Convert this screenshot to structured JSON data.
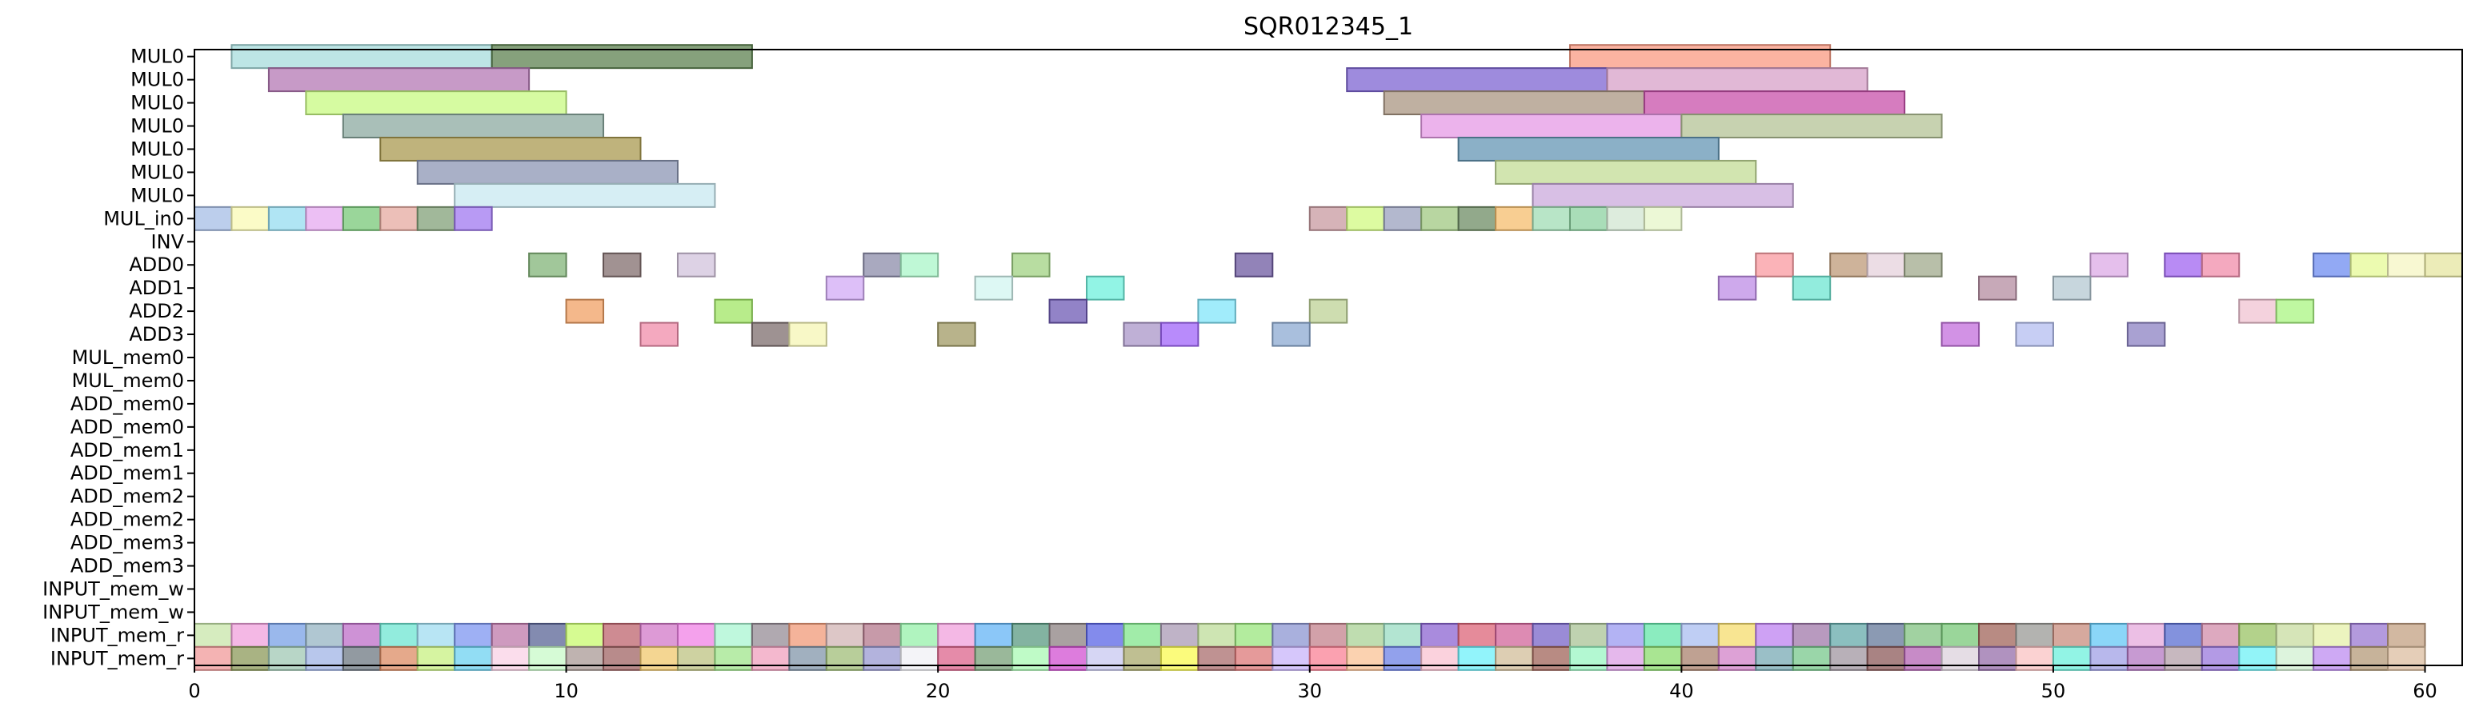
{
  "chart_data": {
    "type": "gantt",
    "title": "SQR012345_1",
    "xlim": [
      0,
      61
    ],
    "x_ticks": [
      "0",
      "10",
      "20",
      "30",
      "40",
      "50",
      "60"
    ],
    "x_tick_values": [
      0,
      10,
      20,
      30,
      40,
      50,
      60
    ],
    "rows": [
      "MUL0",
      "MUL0",
      "MUL0",
      "MUL0",
      "MUL0",
      "MUL0",
      "MUL0",
      "MUL_in0",
      "INV",
      "ADD0",
      "ADD1",
      "ADD2",
      "ADD3",
      "MUL_mem0",
      "MUL_mem0",
      "ADD_mem0",
      "ADD_mem0",
      "ADD_mem1",
      "ADD_mem1",
      "ADD_mem2",
      "ADD_mem2",
      "ADD_mem3",
      "ADD_mem3",
      "INPUT_mem_w",
      "INPUT_mem_w",
      "INPUT_mem_r",
      "INPUT_mem_r"
    ],
    "bars": [
      {
        "row": 0,
        "start": 1,
        "end": 8,
        "color": "#a7dcdc"
      },
      {
        "row": 0,
        "start": 8,
        "end": 15,
        "color": "#5d8250"
      },
      {
        "row": 0,
        "start": 37,
        "end": 44,
        "color": "#fa9a82"
      },
      {
        "row": 1,
        "start": 2,
        "end": 9,
        "color": "#b478b4"
      },
      {
        "row": 1,
        "start": 31,
        "end": 38,
        "color": "#7d64d2"
      },
      {
        "row": 1,
        "start": 38,
        "end": 45,
        "color": "#d7a0c8"
      },
      {
        "row": 2,
        "start": 3,
        "end": 10,
        "color": "#c8fa82"
      },
      {
        "row": 2,
        "start": 32,
        "end": 39,
        "color": "#aa9682"
      },
      {
        "row": 2,
        "start": 39,
        "end": 46,
        "color": "#c850aa"
      },
      {
        "row": 3,
        "start": 4,
        "end": 11,
        "color": "#8caaa0"
      },
      {
        "row": 3,
        "start": 33,
        "end": 40,
        "color": "#e69ae6"
      },
      {
        "row": 3,
        "start": 40,
        "end": 47,
        "color": "#b4c396"
      },
      {
        "row": 4,
        "start": 5,
        "end": 12,
        "color": "#aa9a50"
      },
      {
        "row": 4,
        "start": 34,
        "end": 41,
        "color": "#6496b4"
      },
      {
        "row": 5,
        "start": 6,
        "end": 13,
        "color": "#8c96b4"
      },
      {
        "row": 5,
        "start": 35,
        "end": 42,
        "color": "#c3dc96"
      },
      {
        "row": 6,
        "start": 7,
        "end": 14,
        "color": "#c8e8f0"
      },
      {
        "row": 6,
        "start": 36,
        "end": 43,
        "color": "#cbaadc"
      },
      {
        "row": 7,
        "start": 0,
        "end": 1,
        "color": "#a6bde6"
      },
      {
        "row": 7,
        "start": 1,
        "end": 2,
        "color": "#fafab4"
      },
      {
        "row": 7,
        "start": 2,
        "end": 3,
        "color": "#96dcf0"
      },
      {
        "row": 7,
        "start": 3,
        "end": 4,
        "color": "#e6aaf0"
      },
      {
        "row": 7,
        "start": 4,
        "end": 5,
        "color": "#78c878"
      },
      {
        "row": 7,
        "start": 5,
        "end": 6,
        "color": "#e6aaa0"
      },
      {
        "row": 7,
        "start": 6,
        "end": 7,
        "color": "#82a078"
      },
      {
        "row": 7,
        "start": 7,
        "end": 8,
        "color": "#a078f0"
      },
      {
        "row": 7,
        "start": 30,
        "end": 31,
        "color": "#c89aa0"
      },
      {
        "row": 7,
        "start": 31,
        "end": 32,
        "color": "#d2fa82"
      },
      {
        "row": 7,
        "start": 32,
        "end": 33,
        "color": "#9aa0be"
      },
      {
        "row": 7,
        "start": 33,
        "end": 34,
        "color": "#a0c882"
      },
      {
        "row": 7,
        "start": 34,
        "end": 35,
        "color": "#6e8c64"
      },
      {
        "row": 7,
        "start": 35,
        "end": 36,
        "color": "#f5be6e"
      },
      {
        "row": 7,
        "start": 36,
        "end": 37,
        "color": "#a0dcb4"
      },
      {
        "row": 7,
        "start": 37,
        "end": 38,
        "color": "#8cd2a0"
      },
      {
        "row": 7,
        "start": 38,
        "end": 39,
        "color": "#d2e6d2"
      },
      {
        "row": 7,
        "start": 39,
        "end": 40,
        "color": "#e6f5c8"
      },
      {
        "row": 9,
        "start": 9,
        "end": 10,
        "color": "#82b478"
      },
      {
        "row": 9,
        "start": 11,
        "end": 12,
        "color": "#826e6e"
      },
      {
        "row": 9,
        "start": 13,
        "end": 14,
        "color": "#d2c3dc"
      },
      {
        "row": 9,
        "start": 18,
        "end": 19,
        "color": "#8c8caa"
      },
      {
        "row": 9,
        "start": 19,
        "end": 20,
        "color": "#aaf5c8"
      },
      {
        "row": 9,
        "start": 22,
        "end": 23,
        "color": "#a0d282"
      },
      {
        "row": 9,
        "start": 28,
        "end": 29,
        "color": "#6e5aa0"
      },
      {
        "row": 9,
        "start": 42,
        "end": 43,
        "color": "#fa9aa0"
      },
      {
        "row": 9,
        "start": 44,
        "end": 45,
        "color": "#be9a78"
      },
      {
        "row": 9,
        "start": 45,
        "end": 46,
        "color": "#e6d2dc"
      },
      {
        "row": 9,
        "start": 46,
        "end": 47,
        "color": "#a0aa8c"
      },
      {
        "row": 9,
        "start": 51,
        "end": 52,
        "color": "#dcaae6"
      },
      {
        "row": 9,
        "start": 53,
        "end": 54,
        "color": "#a064f0"
      },
      {
        "row": 9,
        "start": 54,
        "end": 55,
        "color": "#f08caa"
      },
      {
        "row": 9,
        "start": 57,
        "end": 58,
        "color": "#6e8cf0"
      },
      {
        "row": 9,
        "start": 58,
        "end": 59,
        "color": "#e6fa96"
      },
      {
        "row": 9,
        "start": 59,
        "end": 60,
        "color": "#f5f5c3"
      },
      {
        "row": 9,
        "start": 60,
        "end": 61,
        "color": "#e6e6a0"
      },
      {
        "row": 10,
        "start": 17,
        "end": 18,
        "color": "#d2aaf5"
      },
      {
        "row": 10,
        "start": 21,
        "end": 22,
        "color": "#d2f5f0"
      },
      {
        "row": 10,
        "start": 24,
        "end": 25,
        "color": "#6ef0dc"
      },
      {
        "row": 10,
        "start": 41,
        "end": 42,
        "color": "#be8ce6"
      },
      {
        "row": 10,
        "start": 43,
        "end": 44,
        "color": "#6ee6d2"
      },
      {
        "row": 10,
        "start": 48,
        "end": 49,
        "color": "#b48ca0"
      },
      {
        "row": 10,
        "start": 50,
        "end": 51,
        "color": "#b4c8d2"
      },
      {
        "row": 11,
        "start": 10,
        "end": 11,
        "color": "#f0a064"
      },
      {
        "row": 11,
        "start": 14,
        "end": 15,
        "color": "#a0e664"
      },
      {
        "row": 11,
        "start": 23,
        "end": 24,
        "color": "#6e5ab4"
      },
      {
        "row": 11,
        "start": 27,
        "end": 28,
        "color": "#82e6fa"
      },
      {
        "row": 11,
        "start": 30,
        "end": 31,
        "color": "#bed296"
      },
      {
        "row": 11,
        "start": 55,
        "end": 56,
        "color": "#f0c3d2"
      },
      {
        "row": 11,
        "start": 56,
        "end": 57,
        "color": "#aaf582"
      },
      {
        "row": 12,
        "start": 12,
        "end": 13,
        "color": "#f08caa"
      },
      {
        "row": 12,
        "start": 15,
        "end": 16,
        "color": "#7d6e6e"
      },
      {
        "row": 12,
        "start": 16,
        "end": 17,
        "color": "#f5f5b4"
      },
      {
        "row": 12,
        "start": 20,
        "end": 21,
        "color": "#a09a64"
      },
      {
        "row": 12,
        "start": 25,
        "end": 26,
        "color": "#aa96c8"
      },
      {
        "row": 12,
        "start": 26,
        "end": 27,
        "color": "#a064fa"
      },
      {
        "row": 12,
        "start": 29,
        "end": 30,
        "color": "#8caad2"
      },
      {
        "row": 12,
        "start": 47,
        "end": 48,
        "color": "#c36edc"
      },
      {
        "row": 12,
        "start": 49,
        "end": 50,
        "color": "#b4bef0"
      },
      {
        "row": 12,
        "start": 52,
        "end": 53,
        "color": "#8c82c3"
      }
    ],
    "input_mem_rows": [
      {
        "row": 25,
        "colors": [
          "#c8e6aa",
          "#f0a0dc",
          "#78a0e6",
          "#96b4c3",
          "#be6ec8",
          "#6ee6d2",
          "#a0dcf0",
          "#7d96f0",
          "#be78aa",
          "#5a6496",
          "#c8fa6e",
          "#be646e",
          "#d278c8",
          "#f082e6",
          "#aaf5d2",
          "#968c96",
          "#f09a78",
          "#d2b4b4",
          "#b4788c",
          "#96f0aa",
          "#f0a0dc",
          "#64b4f5",
          "#5a9a82",
          "#8c8282",
          "#5a64e6",
          "#82e68c",
          "#aa9ab4",
          "#bedc9a",
          "#9ae67d",
          "#8c96d2",
          "#c3828c",
          "#aad296",
          "#9adcc3",
          "#8c64d2",
          "#dc6478",
          "#d2649a",
          "#7864c8",
          "#aac396",
          "#9a9af0",
          "#64e6aa",
          "#aabef0",
          "#f5dc6e",
          "#be82f0",
          "#a078aa",
          "#64aaaa",
          "#64789a",
          "#82c382",
          "#78c878",
          "#a0645a",
          "#9a9a96",
          "#c88c7d",
          "#64c8f5",
          "#e6aadc",
          "#5a6ed2",
          "#d28caa",
          "#9ac364",
          "#c8dca0",
          "#e6f0aa",
          "#9a78d2",
          "#c3a082"
        ],
        "extra": [
          {
            "idx": 57,
            "color": "#a0dcc8"
          },
          {
            "idx": 58,
            "color": "#f0d2f0"
          },
          {
            "idx": 59,
            "color": "#e6be96"
          }
        ]
      },
      {
        "row": 26,
        "colors": [
          "#f09a9a",
          "#8c9a5a",
          "#a0c8b4",
          "#a0b4e6",
          "#6e7882",
          "#dc8c64",
          "#c8f082",
          "#6ed2f0",
          "#fad2e6",
          "#c8fac8",
          "#aa9a96",
          "#a06464",
          "#f0c86e",
          "#bec382",
          "#a0e68c",
          "#f0a0be",
          "#8296aa",
          "#a0be78",
          "#9a9ad2",
          "#f0f0f5",
          "#dc648c",
          "#78a078",
          "#aafab4",
          "#d250d2",
          "#c8c8f0",
          "#aaaa6e",
          "#fafa50",
          "#aa6e6e",
          "#dc7878",
          "#c8b4fa",
          "#fa8296",
          "#fac396",
          "#6e82e6",
          "#fac3d2",
          "#6ef0fa",
          "#d2be9a",
          "#a0645a",
          "#9af5c3",
          "#dca0e6",
          "#8cdc6e",
          "#aa826e",
          "#d282c8",
          "#78aab4",
          "#78c88c",
          "#a096a0",
          "#8c5a5a",
          "#b464b4",
          "#dcd2dc",
          "#966eaa",
          "#fac3c3",
          "#6ef0dc",
          "#a0a0e6",
          "#b478c3",
          "#b4a0aa",
          "#9a78dc",
          "#6ef0f5",
          "#d2f0d2",
          "#be8cf0",
          "#b49a78",
          "#dcbea0"
        ]
      }
    ]
  }
}
